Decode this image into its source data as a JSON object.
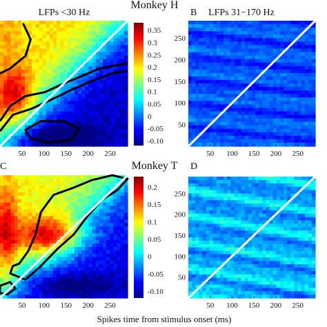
{
  "figure": {
    "xlabel": "Spikes time from stimulus onset (ms)",
    "monkeys": [
      "Monkey H",
      "Monkey T"
    ]
  },
  "chart_data": [
    {
      "type": "heatmap",
      "panel": "",
      "title": "LFPs <30 Hz",
      "monkey": "Monkey H",
      "xlim": [
        0,
        290
      ],
      "ylim": [
        0,
        290
      ],
      "x_ticks": [
        "50",
        "100",
        "150",
        "200",
        "250"
      ],
      "y_ticks": [],
      "colorbar": {
        "range": [
          -0.12,
          0.38
        ],
        "ticks": [
          "0.35",
          "0.3",
          "0.25",
          "0.2",
          "0.15",
          "0.1",
          "0.05",
          "0",
          "-0.05",
          "-0.10"
        ]
      },
      "diagonal": true,
      "contours": true
    },
    {
      "type": "heatmap",
      "panel": "B",
      "title": "LFPs 31−170 Hz",
      "monkey": "Monkey H",
      "xlim": [
        0,
        290
      ],
      "ylim": [
        0,
        290
      ],
      "x_ticks": [
        "50",
        "100",
        "150",
        "200",
        "250"
      ],
      "y_ticks": [
        "50",
        "100",
        "150",
        "200",
        "250"
      ],
      "colorbar": null,
      "diagonal": true,
      "contours": false
    },
    {
      "type": "heatmap",
      "panel": "C",
      "title": "",
      "monkey": "Monkey T",
      "xlim": [
        0,
        290
      ],
      "ylim": [
        0,
        290
      ],
      "x_ticks": [
        "50",
        "100",
        "150",
        "200",
        "250"
      ],
      "y_ticks": [],
      "colorbar": {
        "range": [
          -0.12,
          0.23
        ],
        "ticks": [
          "0.2",
          "0.15",
          "0.1",
          "0.05",
          "0",
          "-0.05",
          "-0.10"
        ]
      },
      "diagonal": true,
      "contours": true
    },
    {
      "type": "heatmap",
      "panel": "D",
      "title": "",
      "monkey": "Monkey T",
      "xlim": [
        0,
        290
      ],
      "ylim": [
        0,
        290
      ],
      "x_ticks": [
        "50",
        "100",
        "150",
        "200",
        "250"
      ],
      "y_ticks": [
        "50",
        "100",
        "150",
        "200",
        "250"
      ],
      "colorbar": null,
      "diagonal": true,
      "contours": false
    }
  ]
}
